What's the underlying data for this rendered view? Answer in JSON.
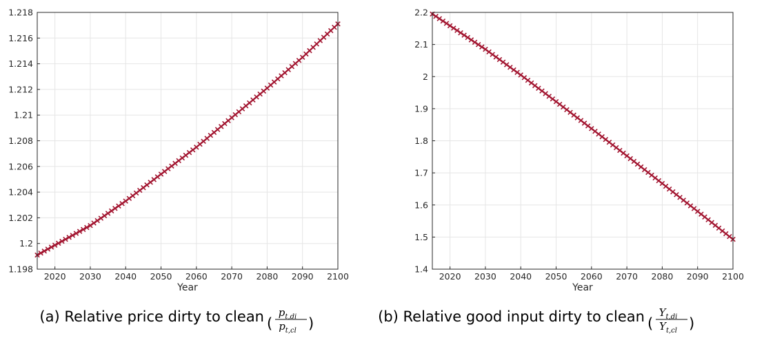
{
  "colors": {
    "series": "#a2142f",
    "grid": "#e5e5e5",
    "axis": "#262626"
  },
  "chart_data": [
    {
      "type": "line",
      "marker": "x",
      "caption_prefix": "(a) Relative price dirty to clean",
      "fraction": {
        "numerator": "p",
        "numerator_sub": "t,di",
        "denominator": "p",
        "denominator_sub": "t,cl"
      },
      "xlabel": "Year",
      "ylabel": "",
      "xlim": [
        2015,
        2100
      ],
      "ylim": [
        1.198,
        1.218
      ],
      "xticks": [
        2020,
        2030,
        2040,
        2050,
        2060,
        2070,
        2080,
        2090,
        2100
      ],
      "yticks": [
        "1.198",
        "1.2",
        "1.202",
        "1.204",
        "1.206",
        "1.208",
        "1.21",
        "1.212",
        "1.214",
        "1.216",
        "1.218"
      ],
      "grid": true,
      "series": [
        {
          "x_start": 2015,
          "x_end": 2100,
          "x_step": 1,
          "x": [
            2015,
            2030,
            2040,
            2050,
            2060,
            2070,
            2080,
            2090,
            2100
          ],
          "y": [
            1.1991,
            1.2014,
            1.2033,
            1.2054,
            1.2075,
            1.2098,
            1.2121,
            1.2145,
            1.2171
          ]
        }
      ]
    },
    {
      "type": "line",
      "marker": "x",
      "caption_prefix": "(b) Relative good input dirty to clean",
      "fraction": {
        "numerator": "Y",
        "numerator_sub": "t,di",
        "denominator": "Y",
        "denominator_sub": "t,cl"
      },
      "xlabel": "Year",
      "ylabel": "",
      "xlim": [
        2015,
        2100
      ],
      "ylim": [
        1.4,
        2.2
      ],
      "xticks": [
        2020,
        2030,
        2040,
        2050,
        2060,
        2070,
        2080,
        2090,
        2100
      ],
      "yticks": [
        "1.4",
        "1.5",
        "1.6",
        "1.7",
        "1.8",
        "1.9",
        "2",
        "2.1",
        "2.2"
      ],
      "grid": true,
      "series": [
        {
          "x_start": 2015,
          "x_end": 2100,
          "x_step": 1,
          "x": [
            2015,
            2030,
            2040,
            2050,
            2060,
            2070,
            2080,
            2090,
            2100
          ],
          "y": [
            2.195,
            2.085,
            2.005,
            1.922,
            1.838,
            1.753,
            1.667,
            1.58,
            1.493
          ]
        }
      ]
    }
  ]
}
